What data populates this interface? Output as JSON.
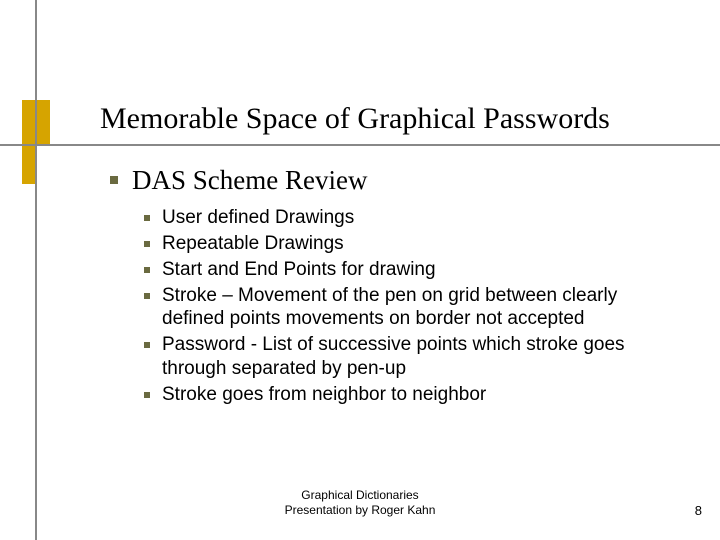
{
  "colors": {
    "gold": "#d6a400",
    "line": "#888888",
    "bullet": "#6a6a40",
    "text": "#000000",
    "background": "#ffffff"
  },
  "title": "Memorable Space of Graphical Passwords",
  "section": "DAS Scheme Review",
  "items": [
    "User defined Drawings",
    "Repeatable Drawings",
    "Start and End Points for drawing",
    "Stroke – Movement of the pen on grid between clearly defined points movements on border not accepted",
    "Password - List of successive points which stroke goes through separated by pen-up",
    "Stroke goes from neighbor to neighbor"
  ],
  "footer": {
    "line1": "Graphical Dictionaries",
    "line2": "Presentation by Roger Kahn"
  },
  "page_number": "8"
}
